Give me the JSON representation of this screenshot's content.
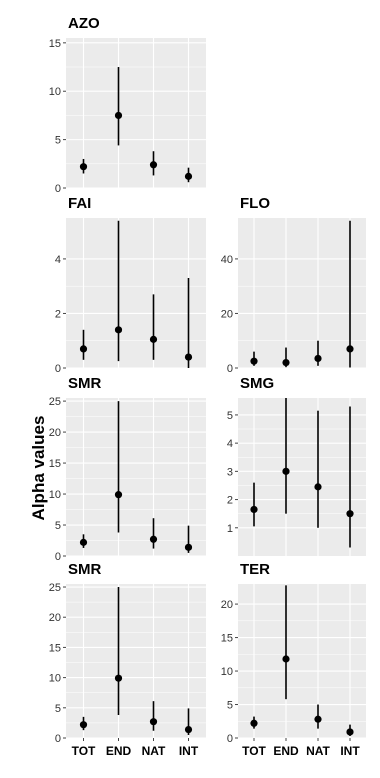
{
  "shared": {
    "ylabel": "Alpha values",
    "categories": [
      "TOT",
      "END",
      "NAT",
      "INT"
    ],
    "point_color": "#000000",
    "panel_bg": "#ebebeb",
    "grid_color": "#ffffff"
  },
  "chart_data": [
    {
      "type": "scatter",
      "title": "AZO",
      "categories": [
        "TOT",
        "END",
        "NAT",
        "INT"
      ],
      "ylim": [
        0,
        15.5
      ],
      "yticks": [
        0,
        5,
        10,
        15
      ],
      "series": [
        {
          "values": [
            2.2,
            7.5,
            2.4,
            1.2
          ],
          "lower": [
            1.5,
            4.4,
            1.3,
            0.6
          ],
          "upper": [
            3.0,
            12.5,
            3.8,
            2.1
          ]
        }
      ]
    },
    {
      "type": "scatter",
      "title": "FAI",
      "categories": [
        "TOT",
        "END",
        "NAT",
        "INT"
      ],
      "ylim": [
        0,
        5.5
      ],
      "yticks": [
        0,
        2,
        4
      ],
      "series": [
        {
          "values": [
            0.7,
            1.4,
            1.05,
            0.4
          ],
          "lower": [
            0.3,
            0.25,
            0.3,
            0.0
          ],
          "upper": [
            1.4,
            5.4,
            2.7,
            3.3
          ]
        }
      ]
    },
    {
      "type": "scatter",
      "title": "FLO",
      "categories": [
        "TOT",
        "END",
        "NAT",
        "INT"
      ],
      "ylim": [
        0,
        55
      ],
      "yticks": [
        0,
        20,
        40
      ],
      "series": [
        {
          "values": [
            2.5,
            2.0,
            3.5,
            7.0
          ],
          "lower": [
            0.8,
            0.3,
            0.8,
            0.2
          ],
          "upper": [
            6.0,
            7.5,
            10.0,
            54.0
          ]
        }
      ]
    },
    {
      "type": "scatter",
      "title": "SMR",
      "categories": [
        "TOT",
        "END",
        "NAT",
        "INT"
      ],
      "ylim": [
        0,
        25.5
      ],
      "yticks": [
        0,
        5,
        10,
        15,
        20,
        25
      ],
      "series": [
        {
          "values": [
            2.2,
            9.9,
            2.7,
            1.4
          ],
          "lower": [
            1.3,
            3.8,
            1.2,
            0.5
          ],
          "upper": [
            3.5,
            25.0,
            6.1,
            4.9
          ]
        }
      ]
    },
    {
      "type": "scatter",
      "title": "SMG",
      "categories": [
        "TOT",
        "END",
        "NAT",
        "INT"
      ],
      "ylim": [
        0,
        5.6
      ],
      "yticks": [
        1,
        2,
        3,
        4,
        5
      ],
      "series": [
        {
          "values": [
            1.65,
            3.0,
            2.45,
            1.5
          ],
          "lower": [
            1.05,
            1.5,
            1.0,
            0.3
          ],
          "upper": [
            2.6,
            5.6,
            5.15,
            5.3
          ]
        }
      ]
    },
    {
      "type": "scatter",
      "title": "SMR",
      "categories": [
        "TOT",
        "END",
        "NAT",
        "INT"
      ],
      "ylim": [
        0,
        25.5
      ],
      "yticks": [
        0,
        5,
        10,
        15,
        20,
        25
      ],
      "series": [
        {
          "values": [
            2.2,
            9.9,
            2.7,
            1.4
          ],
          "lower": [
            1.3,
            3.8,
            1.2,
            0.5
          ],
          "upper": [
            3.5,
            25.0,
            6.1,
            4.9
          ]
        }
      ]
    },
    {
      "type": "scatter",
      "title": "TER",
      "categories": [
        "TOT",
        "END",
        "NAT",
        "INT"
      ],
      "ylim": [
        0,
        23
      ],
      "yticks": [
        0,
        5,
        10,
        15,
        20
      ],
      "series": [
        {
          "values": [
            2.2,
            11.8,
            2.8,
            0.9
          ],
          "lower": [
            1.4,
            5.8,
            1.4,
            0.3
          ],
          "upper": [
            3.2,
            22.8,
            5.0,
            2.0
          ]
        }
      ]
    }
  ]
}
